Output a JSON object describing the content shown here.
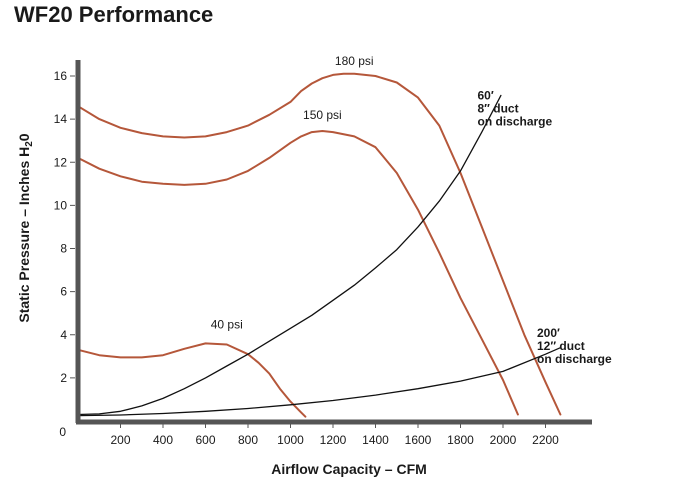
{
  "chart_data": {
    "type": "line",
    "title": "WF20 Performance",
    "xlabel": "Airflow Capacity – CFM",
    "ylabel_main": "Static Pressure – Inches H",
    "ylabel_sub": "2",
    "ylabel_tail": "0",
    "xlim": [
      0,
      2400
    ],
    "ylim": [
      0,
      17
    ],
    "x_ticks": [
      200,
      400,
      600,
      800,
      1000,
      1200,
      1400,
      1600,
      1800,
      2000,
      2200
    ],
    "x_tick_labels": [
      "200",
      "400",
      "600",
      "800",
      "1000",
      "1200",
      "1400",
      "1600",
      "1800",
      "2000",
      "2200"
    ],
    "y_ticks": [
      0,
      2,
      4,
      6,
      8,
      10,
      12,
      14,
      16
    ],
    "y_tick_labels": [
      "0",
      "2",
      "4",
      "6",
      "8",
      "10",
      "12",
      "14",
      "16"
    ],
    "grid": false,
    "colors": {
      "pressure": "#b5573a",
      "duct": "#111111",
      "axis": "#555555"
    },
    "series": [
      {
        "name": "180 psi",
        "kind": "pressure",
        "points": [
          [
            0,
            14.6
          ],
          [
            100,
            14.0
          ],
          [
            200,
            13.6
          ],
          [
            300,
            13.35
          ],
          [
            400,
            13.2
          ],
          [
            500,
            13.15
          ],
          [
            600,
            13.2
          ],
          [
            700,
            13.4
          ],
          [
            800,
            13.7
          ],
          [
            900,
            14.2
          ],
          [
            1000,
            14.8
          ],
          [
            1050,
            15.3
          ],
          [
            1100,
            15.65
          ],
          [
            1150,
            15.9
          ],
          [
            1200,
            16.05
          ],
          [
            1250,
            16.1
          ],
          [
            1300,
            16.1
          ],
          [
            1400,
            16.0
          ],
          [
            1500,
            15.7
          ],
          [
            1600,
            15.0
          ],
          [
            1700,
            13.7
          ],
          [
            1800,
            11.5
          ],
          [
            1900,
            9.0
          ],
          [
            2000,
            6.5
          ],
          [
            2100,
            4.0
          ],
          [
            2200,
            1.8
          ],
          [
            2270,
            0.3
          ]
        ],
        "label_at": [
          1300,
          16.5
        ]
      },
      {
        "name": "150 psi",
        "kind": "pressure",
        "points": [
          [
            0,
            12.2
          ],
          [
            100,
            11.7
          ],
          [
            200,
            11.35
          ],
          [
            300,
            11.1
          ],
          [
            400,
            11.0
          ],
          [
            500,
            10.95
          ],
          [
            600,
            11.0
          ],
          [
            700,
            11.2
          ],
          [
            800,
            11.6
          ],
          [
            900,
            12.2
          ],
          [
            1000,
            12.9
          ],
          [
            1050,
            13.2
          ],
          [
            1100,
            13.4
          ],
          [
            1150,
            13.45
          ],
          [
            1200,
            13.4
          ],
          [
            1300,
            13.2
          ],
          [
            1400,
            12.7
          ],
          [
            1500,
            11.5
          ],
          [
            1600,
            9.8
          ],
          [
            1700,
            7.8
          ],
          [
            1800,
            5.7
          ],
          [
            1900,
            3.8
          ],
          [
            2000,
            1.9
          ],
          [
            2070,
            0.3
          ]
        ],
        "label_at": [
          1150,
          14.0
        ]
      },
      {
        "name": "40 psi",
        "kind": "pressure",
        "points": [
          [
            0,
            3.3
          ],
          [
            100,
            3.05
          ],
          [
            200,
            2.95
          ],
          [
            300,
            2.95
          ],
          [
            400,
            3.05
          ],
          [
            500,
            3.35
          ],
          [
            600,
            3.6
          ],
          [
            700,
            3.55
          ],
          [
            800,
            3.1
          ],
          [
            850,
            2.7
          ],
          [
            900,
            2.2
          ],
          [
            950,
            1.5
          ],
          [
            1000,
            0.9
          ],
          [
            1050,
            0.4
          ],
          [
            1070,
            0.2
          ]
        ],
        "label_at": [
          700,
          4.3
        ]
      },
      {
        "name": "60′ 8″ duct on discharge",
        "kind": "duct",
        "points": [
          [
            0,
            0.3
          ],
          [
            100,
            0.33
          ],
          [
            200,
            0.45
          ],
          [
            300,
            0.7
          ],
          [
            400,
            1.05
          ],
          [
            500,
            1.5
          ],
          [
            600,
            2.0
          ],
          [
            700,
            2.55
          ],
          [
            800,
            3.1
          ],
          [
            900,
            3.7
          ],
          [
            1000,
            4.3
          ],
          [
            1100,
            4.9
          ],
          [
            1200,
            5.6
          ],
          [
            1300,
            6.3
          ],
          [
            1400,
            7.1
          ],
          [
            1500,
            7.95
          ],
          [
            1600,
            9.0
          ],
          [
            1700,
            10.2
          ],
          [
            1800,
            11.6
          ],
          [
            1900,
            13.4
          ],
          [
            1990,
            15.1
          ]
        ]
      },
      {
        "name": "200′ 12″ duct on discharge",
        "kind": "duct",
        "points": [
          [
            0,
            0.25
          ],
          [
            200,
            0.28
          ],
          [
            400,
            0.35
          ],
          [
            600,
            0.45
          ],
          [
            800,
            0.58
          ],
          [
            1000,
            0.75
          ],
          [
            1200,
            0.95
          ],
          [
            1400,
            1.2
          ],
          [
            1600,
            1.5
          ],
          [
            1800,
            1.85
          ],
          [
            2000,
            2.3
          ],
          [
            2200,
            3.1
          ],
          [
            2270,
            3.4
          ]
        ]
      }
    ],
    "annotations": [
      {
        "lines": [
          "60′",
          "8″ duct",
          "on discharge"
        ],
        "at": [
          1880,
          14.9
        ]
      },
      {
        "lines": [
          "200′",
          "12″ duct",
          "on discharge"
        ],
        "at": [
          2160,
          3.9
        ]
      }
    ]
  }
}
